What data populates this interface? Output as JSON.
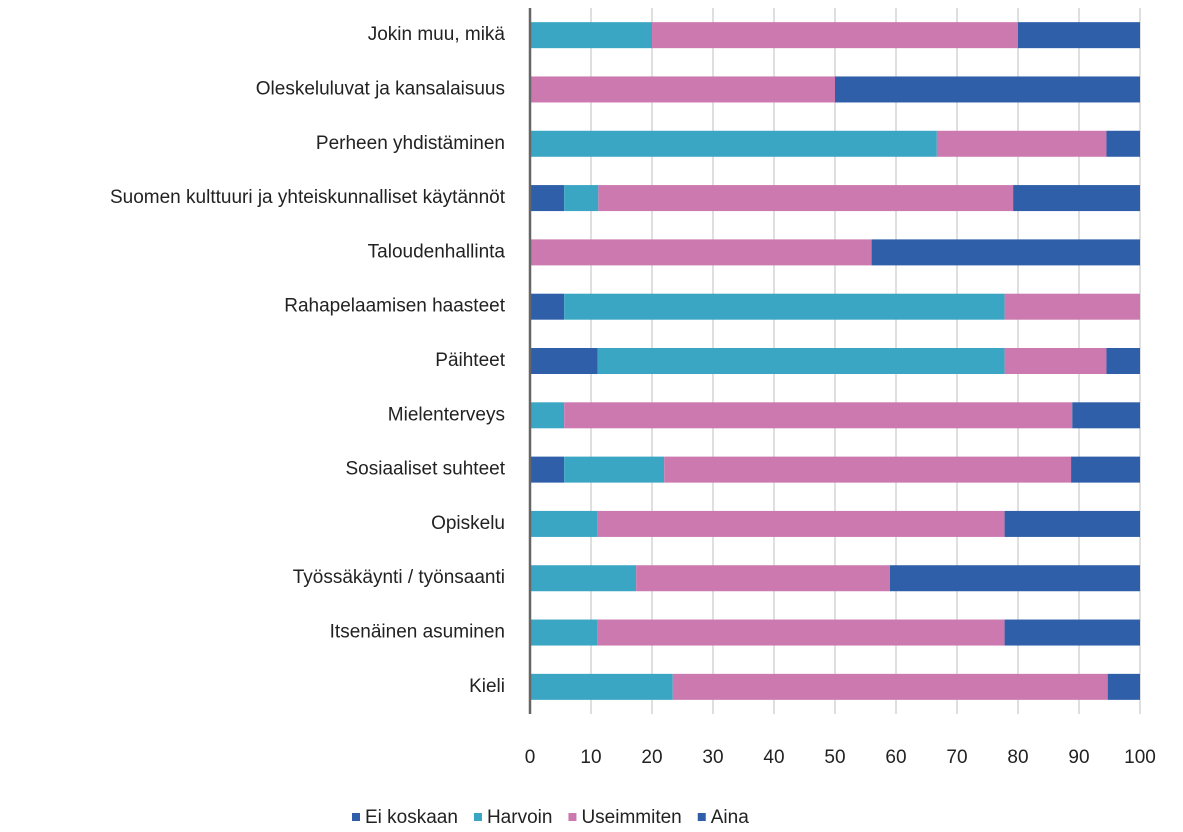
{
  "chart_data": {
    "type": "stacked_barh",
    "categories": [
      "Jokin muu, mikä",
      "Oleskeluluvat ja kansalaisuus",
      "Perheen yhdistäminen",
      "Suomen kulttuuri ja yhteiskunnalliset käytännöt",
      "Taloudenhallinta",
      "Rahapelaamisen haasteet",
      "Päihteet",
      "Mielenterveys",
      "Sosiaaliset suhteet",
      "Opiskelu",
      "Työssäkäynti / työnsaanti",
      "Itsenäinen asuminen",
      "Kieli"
    ],
    "series": [
      {
        "name": "Ei koskaan",
        "color": "#2e5fa8",
        "values": [
          0,
          0,
          0,
          5.6,
          0,
          5.6,
          11.1,
          0,
          5.6,
          0,
          0,
          0,
          0
        ]
      },
      {
        "name": "Harvoin",
        "color": "#3aa6c4",
        "values": [
          20,
          0,
          66.7,
          5.6,
          0,
          72.2,
          66.7,
          5.6,
          16.4,
          11.1,
          17.4,
          11.1,
          23.4
        ]
      },
      {
        "name": "Useimmiten",
        "color": "#cc79b0",
        "values": [
          60,
          50,
          27.8,
          68,
          56,
          22.2,
          16.7,
          83.3,
          66.7,
          66.7,
          41.6,
          66.7,
          71.3
        ]
      },
      {
        "name": "Aina",
        "color": "#2e5fa8",
        "values": [
          20,
          50,
          5.5,
          20.8,
          44,
          0,
          5.5,
          11.1,
          11.3,
          22.2,
          41,
          22.2,
          5.3
        ]
      }
    ],
    "xlim": [
      0,
      100
    ],
    "xticks": [
      0,
      10,
      20,
      30,
      40,
      50,
      60,
      70,
      80,
      90,
      100
    ],
    "grid": true,
    "legend": "bottom"
  }
}
